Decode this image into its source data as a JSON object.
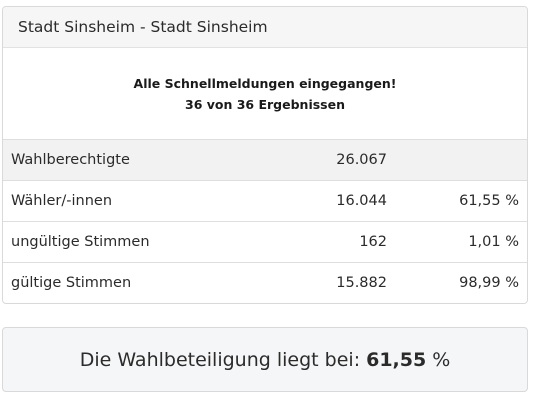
{
  "card": {
    "title": "Stadt Sinsheim - Stadt Sinsheim",
    "notice_line1": "Alle Schnellmeldungen eingegangen!",
    "notice_line2": "36 von 36 Ergebnissen"
  },
  "stats": [
    {
      "label": "Wahlberechtigte",
      "value": "26.067",
      "percent": ""
    },
    {
      "label": "Wähler/-innen",
      "value": "16.044",
      "percent": "61,55 %"
    },
    {
      "label": "ungültige Stimmen",
      "value": "162",
      "percent": "1,01 %"
    },
    {
      "label": "gültige Stimmen",
      "value": "15.882",
      "percent": "98,99 %"
    }
  ],
  "summary": {
    "prefix": "Die Wahlbeteiligung liegt bei:",
    "value": "61,55",
    "unit": "%"
  }
}
